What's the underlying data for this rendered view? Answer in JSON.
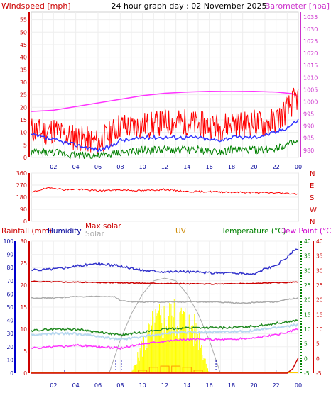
{
  "chart_data": [
    {
      "type": "line",
      "title": "24 hour graph day : 02 November 2025",
      "left_axis_label": "Windspeed [mph]",
      "right_axis_label": "Barometer [hpa]",
      "x_ticks": [
        "02",
        "04",
        "06",
        "08",
        "10",
        "12",
        "14",
        "16",
        "18",
        "20",
        "22",
        "00"
      ],
      "x_hours": [
        0,
        24
      ],
      "left_ylim": [
        0,
        58
      ],
      "left_ticks": [
        0,
        5,
        10,
        15,
        20,
        25,
        30,
        35,
        40,
        45,
        50,
        55
      ],
      "right_ylim": [
        977,
        1037
      ],
      "right_ticks": [
        980,
        985,
        990,
        995,
        1000,
        1005,
        1010,
        1015,
        1020,
        1025,
        1030,
        1035
      ],
      "series": [
        {
          "axis": "right",
          "color": "#ff33ff",
          "x": [
            0,
            2,
            4,
            6,
            8,
            10,
            12,
            14,
            16,
            18,
            20,
            22,
            23.5,
            24
          ],
          "values": [
            996,
            996.5,
            998,
            999.5,
            1001,
            1002.5,
            1003.5,
            1004,
            1004.3,
            1004.2,
            1004.3,
            1004,
            1003.3,
            1002
          ]
        },
        {
          "axis": "left",
          "color": "#ff0000",
          "x": [
            0,
            1,
            2,
            3,
            4,
            5,
            6,
            7,
            8,
            9,
            10,
            11,
            12,
            13,
            14,
            15,
            16,
            17,
            18,
            19,
            20,
            21,
            22,
            23,
            23.5,
            24
          ],
          "values": [
            11,
            10,
            11,
            9,
            8,
            7,
            6,
            9,
            13,
            12,
            13,
            13,
            14,
            14,
            14,
            13,
            13,
            12,
            14,
            13,
            14,
            13,
            15,
            19,
            22,
            24
          ]
        },
        {
          "axis": "left",
          "color": "#3333ff",
          "x": [
            0,
            1,
            2,
            3,
            4,
            5,
            6,
            7,
            8,
            9,
            10,
            11,
            12,
            13,
            14,
            15,
            16,
            17,
            18,
            19,
            20,
            21,
            22,
            23,
            24
          ],
          "values": [
            9,
            8,
            7,
            6,
            5,
            4,
            3,
            4,
            7,
            7,
            8,
            8,
            8,
            8,
            8,
            8,
            7,
            7,
            8,
            8,
            8,
            9,
            10,
            12,
            15
          ]
        },
        {
          "axis": "left",
          "color": "#008000",
          "x": [
            0,
            1,
            2,
            3,
            4,
            5,
            6,
            7,
            8,
            9,
            10,
            11,
            12,
            13,
            14,
            15,
            16,
            17,
            18,
            19,
            20,
            21,
            22,
            23,
            24
          ],
          "values": [
            2,
            2,
            2,
            1.5,
            1,
            1,
            0.5,
            1,
            2,
            2,
            3,
            3,
            3,
            3,
            3,
            3,
            2.5,
            2.5,
            3,
            3,
            3,
            3,
            4,
            5,
            6
          ]
        }
      ]
    },
    {
      "type": "line",
      "y_ticks": [
        0,
        90,
        180,
        270,
        360
      ],
      "ylim": [
        0,
        360
      ],
      "direction_labels": [
        "N",
        "W",
        "S",
        "E",
        "N"
      ],
      "series": [
        {
          "color": "#ff0000",
          "x": [
            0,
            1,
            2,
            3,
            4,
            6,
            8,
            10,
            12,
            14,
            16,
            18,
            20,
            22,
            24
          ],
          "values": [
            215,
            240,
            250,
            235,
            240,
            228,
            235,
            228,
            238,
            222,
            222,
            218,
            215,
            212,
            205
          ]
        }
      ]
    },
    {
      "type": "line",
      "legend": {
        "rain": "Rainfall (mm)",
        "humidity": "Humidity",
        "maxsolar": "Max solar",
        "solar": "Solar",
        "uv": "UV",
        "temperature": "Temperature (°C)",
        "dewpoint": "Dew Point (°C)"
      },
      "rain_ticks": [
        0,
        5,
        10,
        15,
        20,
        25,
        30
      ],
      "rain_ylim": [
        0,
        30
      ],
      "humidity_ticks": [
        0,
        10,
        20,
        30,
        40,
        50,
        60,
        70,
        80,
        90,
        100
      ],
      "humidity_ylim": [
        0,
        100
      ],
      "temp_ticks": [
        -5,
        0,
        5,
        10,
        15,
        20,
        25,
        30,
        35,
        40
      ],
      "temp_ylim": [
        -5,
        40
      ],
      "dew_ticks": [
        -5,
        0,
        5,
        10,
        15,
        20,
        25,
        30,
        35,
        40
      ],
      "series": [
        {
          "name": "humidity",
          "color": "#3333cc",
          "axis": "humidity",
          "x": [
            0,
            2,
            4,
            6,
            8,
            10,
            12,
            14,
            16,
            18,
            20,
            21,
            22,
            22.5,
            23,
            23.5,
            24
          ],
          "values": [
            78,
            79,
            81,
            83,
            81,
            78,
            77,
            77,
            76,
            76,
            75,
            79,
            81,
            85,
            88,
            92,
            94
          ]
        },
        {
          "name": "maxsolar",
          "color": "#cc0000",
          "axis": "humidity",
          "x": [
            0,
            4,
            8,
            12,
            16,
            20,
            24
          ],
          "values": [
            69.5,
            69,
            68.5,
            68,
            67.5,
            68,
            69
          ]
        },
        {
          "name": "solar",
          "color": "#aaaaaa",
          "axis": "humidity",
          "x": [
            0,
            2,
            4,
            6,
            7.5,
            8,
            9,
            12,
            16,
            19,
            21,
            22,
            23,
            24
          ],
          "values": [
            57,
            57,
            58,
            58,
            58,
            55,
            54,
            54,
            54,
            53,
            54,
            54,
            56,
            57
          ]
        },
        {
          "name": "temperature",
          "color": "#228b22",
          "axis": "temp",
          "x": [
            0,
            2,
            4,
            6,
            8,
            10,
            12,
            14,
            16,
            18,
            20,
            22,
            24
          ],
          "values": [
            9.5,
            10,
            10,
            9,
            8,
            9,
            10,
            10.5,
            10.5,
            10.5,
            11,
            12,
            13
          ]
        },
        {
          "name": "dewpoint",
          "color": "#ff33ff",
          "axis": "temp",
          "x": [
            0,
            2,
            4,
            6,
            8,
            10,
            12,
            14,
            16,
            18,
            20,
            22,
            24
          ],
          "values": [
            3.5,
            4,
            4.5,
            4,
            3.5,
            5,
            6,
            6.5,
            6.5,
            6.5,
            7,
            8,
            10
          ]
        },
        {
          "name": "felt",
          "color": "#b8d8f0",
          "axis": "temp",
          "x": [
            0,
            2,
            4,
            6,
            8,
            10,
            12,
            14,
            16,
            18,
            20,
            22,
            24
          ],
          "values": [
            8,
            8.5,
            8.5,
            7.5,
            6.5,
            7.5,
            8.5,
            9,
            9,
            9,
            9.5,
            10.5,
            11.5
          ]
        },
        {
          "name": "rain",
          "color": "#cc0000",
          "axis": "rain",
          "x": [
            0,
            22,
            23,
            23.5,
            24
          ],
          "values": [
            0,
            0,
            0,
            1,
            3.5
          ]
        }
      ],
      "solar_curve": {
        "color": "#aaaaaa",
        "x": [
          7,
          8,
          9,
          10,
          11,
          12,
          13,
          14,
          15,
          16,
          17
        ],
        "values": [
          0,
          25,
          45,
          60,
          70,
          72,
          70,
          60,
          45,
          25,
          0
        ]
      },
      "solar_bars": {
        "color": "#ffff00",
        "x_start": 9,
        "x_end": 16,
        "x": [
          9,
          10,
          11,
          12,
          13,
          14,
          15,
          16
        ],
        "values": [
          0,
          20,
          35,
          40,
          40,
          38,
          28,
          0
        ]
      },
      "uv_bars": {
        "color": "#ff9900",
        "x": [
          10,
          11,
          12,
          13,
          14,
          15
        ],
        "values": [
          0.5,
          1,
          1.2,
          1.2,
          1,
          0.5
        ]
      }
    }
  ]
}
